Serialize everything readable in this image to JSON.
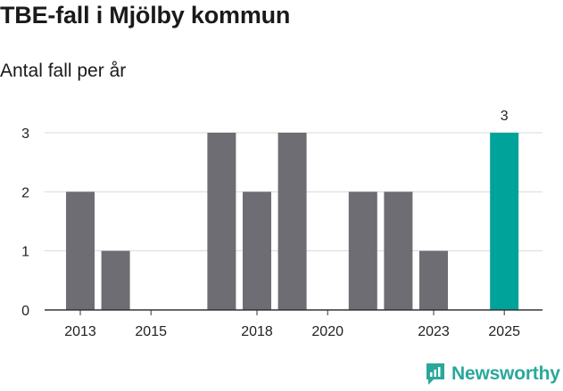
{
  "header": {
    "title": "TBE-fall i Mjölby kommun",
    "subtitle": "Antal fall per år"
  },
  "brand": {
    "name": "Newsworthy",
    "color": "#2aa89a",
    "icon": "newsworthy-logo-icon"
  },
  "chart_data": {
    "type": "bar",
    "x": [
      2013,
      2014,
      2015,
      2016,
      2017,
      2018,
      2019,
      2020,
      2021,
      2022,
      2023,
      2024,
      2025
    ],
    "values": [
      2,
      1,
      0,
      0,
      3,
      2,
      3,
      0,
      2,
      2,
      1,
      0,
      3
    ],
    "x_tick_labels": [
      "2013",
      "2015",
      "2018",
      "2020",
      "2023",
      "2025"
    ],
    "y_ticks": [
      0,
      1,
      2,
      3
    ],
    "ylim": [
      0,
      3
    ],
    "highlight": {
      "x": 2025,
      "label": "3",
      "color": "#00a39a"
    },
    "bar_color": "#6e6d73",
    "grid": true
  }
}
